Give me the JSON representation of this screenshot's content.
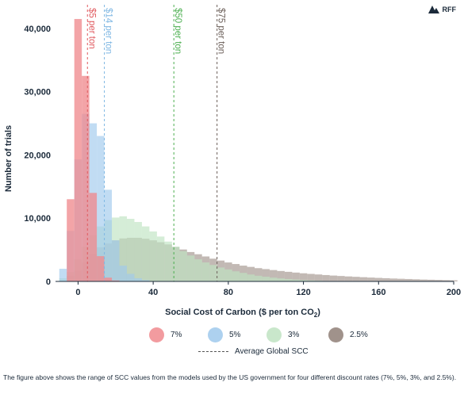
{
  "brand": {
    "name": "RFF"
  },
  "chart_data": {
    "type": "bar",
    "subtype": "overlapping-histogram",
    "xlabel": "Social Cost of Carbon ($ per ton CO",
    "xlabel_sub": "2",
    "xlabel_close": ")",
    "ylabel": "Number of trials",
    "xlim": [
      -12,
      200
    ],
    "ylim": [
      0,
      44000
    ],
    "x_ticks": [
      0,
      40,
      80,
      120,
      160,
      200
    ],
    "x_tick_labels": [
      "0",
      "40",
      "80",
      "120",
      "160",
      "200"
    ],
    "y_ticks": [
      0,
      10000,
      20000,
      30000,
      40000
    ],
    "y_tick_labels": [
      "0",
      "10,000",
      "20,000",
      "30,000",
      "40,000"
    ],
    "grid": false,
    "legend_position": "bottom",
    "bin_width": 4,
    "series": [
      {
        "name": "7%",
        "color": "#f08a8e",
        "opacity": 0.78,
        "bins_start": -6,
        "values": [
          13000,
          41500,
          32500,
          14000,
          4000,
          600,
          150
        ]
      },
      {
        "name": "5%",
        "color": "#9fc9ec",
        "opacity": 0.65,
        "bins_start": -10,
        "values": [
          2000,
          8000,
          19300,
          26500,
          25000,
          23000,
          14500,
          6500,
          2500,
          1200,
          500,
          200
        ]
      },
      {
        "name": "3%",
        "color": "#bfe3c2",
        "opacity": 0.65,
        "bins_start": -10,
        "values": [
          500,
          1500,
          3500,
          5500,
          7300,
          8700,
          9700,
          10100,
          10300,
          9900,
          9400,
          8700,
          7900,
          7100,
          6300,
          5500,
          4800,
          4100,
          3500,
          3000,
          2600,
          2200,
          1900,
          1600,
          1350,
          1100,
          900,
          750,
          600,
          480,
          380,
          300,
          230,
          170,
          120,
          80
        ]
      },
      {
        "name": "2.5%",
        "color": "#8f7f77",
        "opacity": 0.55,
        "bins_start": -6,
        "values": [
          900,
          1700,
          3000,
          4300,
          5400,
          6000,
          6500,
          6800,
          6900,
          6900,
          6750,
          6500,
          6200,
          5850,
          5450,
          5050,
          4650,
          4300,
          3950,
          3600,
          3300,
          3000,
          2750,
          2500,
          2300,
          2100,
          1950,
          1800,
          1650,
          1520,
          1400,
          1290,
          1190,
          1100,
          1010,
          930,
          860,
          790,
          730,
          670,
          610,
          560,
          510,
          460,
          420,
          380,
          340,
          300,
          270,
          240,
          210,
          180
        ]
      }
    ],
    "markers": [
      {
        "label": "$5 per ton",
        "x": 5,
        "color": "#e05a5f"
      },
      {
        "label": "$14 per ton",
        "x": 14,
        "color": "#7fb7e3"
      },
      {
        "label": "$50 per ton",
        "x": 51,
        "color": "#4caf50"
      },
      {
        "label": "$75 per ton",
        "x": 74,
        "color": "#6b5f59"
      }
    ],
    "average_line_label": "Average Global SCC"
  },
  "caption": "The figure above shows the range of SCC values from the models used by the US government for four different discount rates (7%, 5%, 3%, and 2.5%)."
}
